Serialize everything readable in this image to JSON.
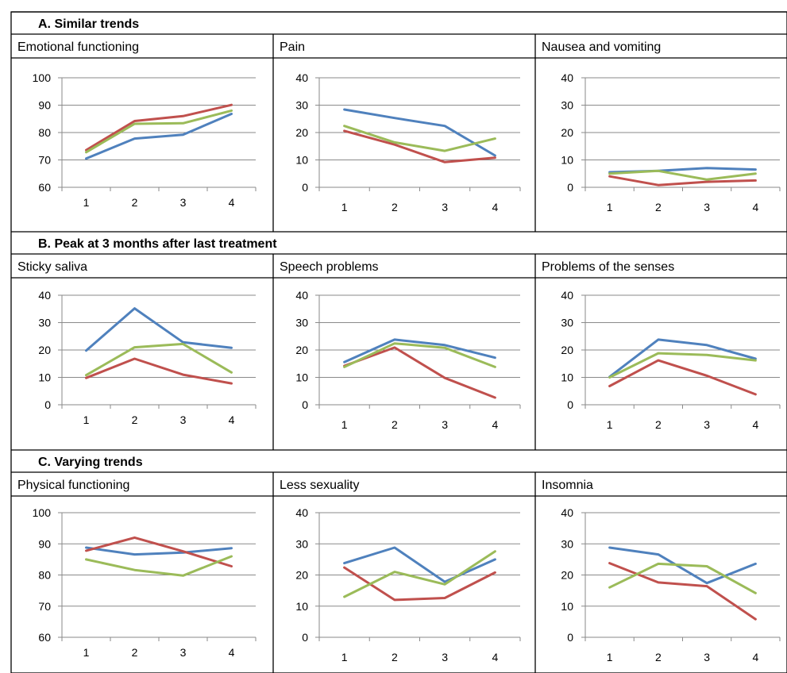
{
  "colors": {
    "blue": "#4f81bd",
    "red": "#c0504d",
    "green": "#9bbb59",
    "grid": "#8a8a8a"
  },
  "sections": [
    {
      "title": "A.   Similar trends"
    },
    {
      "title": "B.   Peak at 3 months after last treatment"
    },
    {
      "title": "C.   Varying trends"
    }
  ],
  "chart_data": [
    {
      "type": "line",
      "title": "Emotional functioning",
      "categories": [
        "1",
        "2",
        "3",
        "4"
      ],
      "ylim": [
        60,
        100
      ],
      "yticks": [
        "60",
        "70",
        "80",
        "90",
        "100"
      ],
      "grid": true,
      "series": [
        {
          "color": "blue",
          "values": [
            70.5,
            77.8,
            79.2,
            86.8
          ]
        },
        {
          "color": "red",
          "values": [
            73.6,
            84.2,
            86.0,
            90.1
          ]
        },
        {
          "color": "green",
          "values": [
            72.8,
            83.2,
            83.4,
            88.0
          ]
        }
      ]
    },
    {
      "type": "line",
      "title": "Pain",
      "categories": [
        "1",
        "2",
        "3",
        "4"
      ],
      "ylim": [
        0,
        40
      ],
      "yticks": [
        "0",
        "10",
        "20",
        "30",
        "40"
      ],
      "grid": true,
      "series": [
        {
          "color": "blue",
          "values": [
            28.4,
            25.3,
            22.4,
            11.6
          ]
        },
        {
          "color": "red",
          "values": [
            20.6,
            15.6,
            9.2,
            10.8
          ]
        },
        {
          "color": "green",
          "values": [
            22.4,
            16.4,
            13.3,
            17.8
          ]
        }
      ]
    },
    {
      "type": "line",
      "title": "Nausea and vomiting",
      "categories": [
        "1",
        "2",
        "3",
        "4"
      ],
      "ylim": [
        0,
        40
      ],
      "yticks": [
        "0",
        "10",
        "20",
        "30",
        "40"
      ],
      "grid": true,
      "series": [
        {
          "color": "blue",
          "values": [
            5.5,
            6.0,
            7.0,
            6.5
          ]
        },
        {
          "color": "red",
          "values": [
            4.0,
            0.8,
            2.0,
            2.5
          ]
        },
        {
          "color": "green",
          "values": [
            5.0,
            6.0,
            2.8,
            5.0
          ]
        }
      ]
    },
    {
      "type": "line",
      "title": "Sticky saliva",
      "categories": [
        "1",
        "2",
        "3",
        "4"
      ],
      "ylim": [
        0,
        40
      ],
      "yticks": [
        "0",
        "10",
        "20",
        "30",
        "40"
      ],
      "grid": true,
      "series": [
        {
          "color": "blue",
          "values": [
            19.8,
            35.2,
            22.8,
            20.8
          ]
        },
        {
          "color": "red",
          "values": [
            9.8,
            16.8,
            11.0,
            7.8
          ]
        },
        {
          "color": "green",
          "values": [
            10.8,
            21.0,
            22.2,
            11.8
          ]
        }
      ]
    },
    {
      "type": "line",
      "title": "Speech problems",
      "categories": [
        "1",
        "2",
        "3",
        "4"
      ],
      "ylim": [
        0,
        40
      ],
      "yticks": [
        "0",
        "10",
        "20",
        "30",
        "40"
      ],
      "grid": true,
      "series": [
        {
          "color": "blue",
          "values": [
            15.6,
            23.8,
            21.8,
            17.2
          ]
        },
        {
          "color": "red",
          "values": [
            14.2,
            20.9,
            9.8,
            2.6
          ]
        },
        {
          "color": "green",
          "values": [
            13.8,
            22.4,
            20.8,
            13.8
          ]
        }
      ]
    },
    {
      "type": "line",
      "title": "Problems of the senses",
      "categories": [
        "1",
        "2",
        "3",
        "4"
      ],
      "ylim": [
        0,
        40
      ],
      "yticks": [
        "0",
        "10",
        "20",
        "30",
        "40"
      ],
      "grid": true,
      "series": [
        {
          "color": "blue",
          "values": [
            10.2,
            23.8,
            21.8,
            16.8
          ]
        },
        {
          "color": "red",
          "values": [
            6.8,
            16.2,
            10.6,
            3.8
          ]
        },
        {
          "color": "green",
          "values": [
            10.0,
            18.8,
            18.2,
            16.2
          ]
        }
      ]
    },
    {
      "type": "line",
      "title": "Physical functioning",
      "categories": [
        "1",
        "2",
        "3",
        "4"
      ],
      "ylim": [
        60,
        100
      ],
      "yticks": [
        "60",
        "70",
        "80",
        "90",
        "100"
      ],
      "grid": true,
      "series": [
        {
          "color": "blue",
          "values": [
            88.8,
            86.6,
            87.2,
            88.6
          ]
        },
        {
          "color": "red",
          "values": [
            87.8,
            92.0,
            87.6,
            82.8
          ]
        },
        {
          "color": "green",
          "values": [
            85.0,
            81.6,
            79.8,
            86.0
          ]
        }
      ]
    },
    {
      "type": "line",
      "title": "Less sexuality",
      "categories": [
        "1",
        "2",
        "3",
        "4"
      ],
      "ylim": [
        0,
        40
      ],
      "yticks": [
        "0",
        "10",
        "20",
        "30",
        "40"
      ],
      "grid": true,
      "series": [
        {
          "color": "blue",
          "values": [
            23.8,
            28.8,
            17.8,
            25.0
          ]
        },
        {
          "color": "red",
          "values": [
            22.4,
            12.0,
            12.6,
            20.8
          ]
        },
        {
          "color": "green",
          "values": [
            13.0,
            21.0,
            17.0,
            27.6
          ]
        }
      ]
    },
    {
      "type": "line",
      "title": "Insomnia",
      "categories": [
        "1",
        "2",
        "3",
        "4"
      ],
      "ylim": [
        0,
        40
      ],
      "yticks": [
        "0",
        "10",
        "20",
        "30",
        "40"
      ],
      "grid": true,
      "series": [
        {
          "color": "blue",
          "values": [
            28.8,
            26.6,
            17.4,
            23.6
          ]
        },
        {
          "color": "red",
          "values": [
            23.8,
            17.6,
            16.4,
            5.8
          ]
        },
        {
          "color": "green",
          "values": [
            16.0,
            23.6,
            22.8,
            14.2
          ]
        }
      ]
    }
  ]
}
